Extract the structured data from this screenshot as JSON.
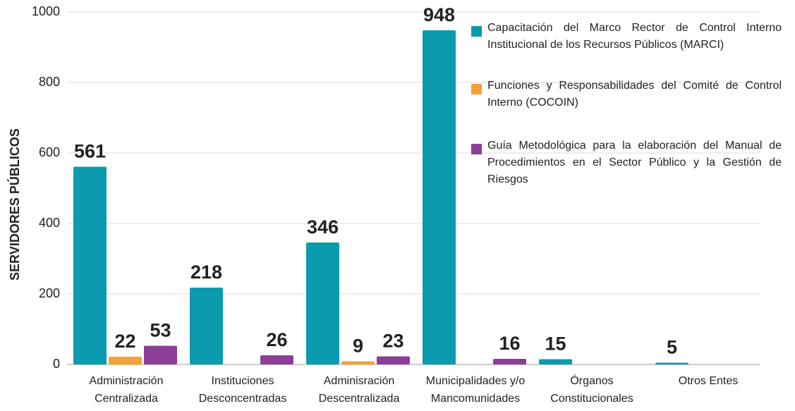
{
  "chart_data": {
    "type": "bar",
    "y_label": "SERVIDORES PÚBLICOS",
    "categories": [
      "Administración Centralizada",
      "Instituciones Desconcentradas",
      "Adminisración Descentralizada",
      "Municipalidades y/o Mancomunidades",
      "Órganos Constitucionales",
      "Otros Entes"
    ],
    "series": [
      {
        "name": "Capacitación del Marco Rector de Control Interno Institucional de los Recursos Públicos (MARCI)",
        "color": "#0b9aae",
        "values": [
          561,
          218,
          346,
          948,
          15,
          5
        ]
      },
      {
        "name": "Funciones y Responsabilidades del Comité de Control Interno (COCOIN)",
        "color": "#f4a233",
        "values": [
          22,
          null,
          9,
          null,
          null,
          null
        ]
      },
      {
        "name": "Guía Metodológica para la elaboración del Manual de Procedimientos en el Sector Público y la Gestión de Riesgos",
        "color": "#8b3f96",
        "values": [
          53,
          26,
          23,
          16,
          null,
          null
        ]
      }
    ],
    "ylim": [
      0,
      1000
    ],
    "yticks": [
      0,
      200,
      400,
      600,
      800,
      1000
    ],
    "grid": true
  }
}
